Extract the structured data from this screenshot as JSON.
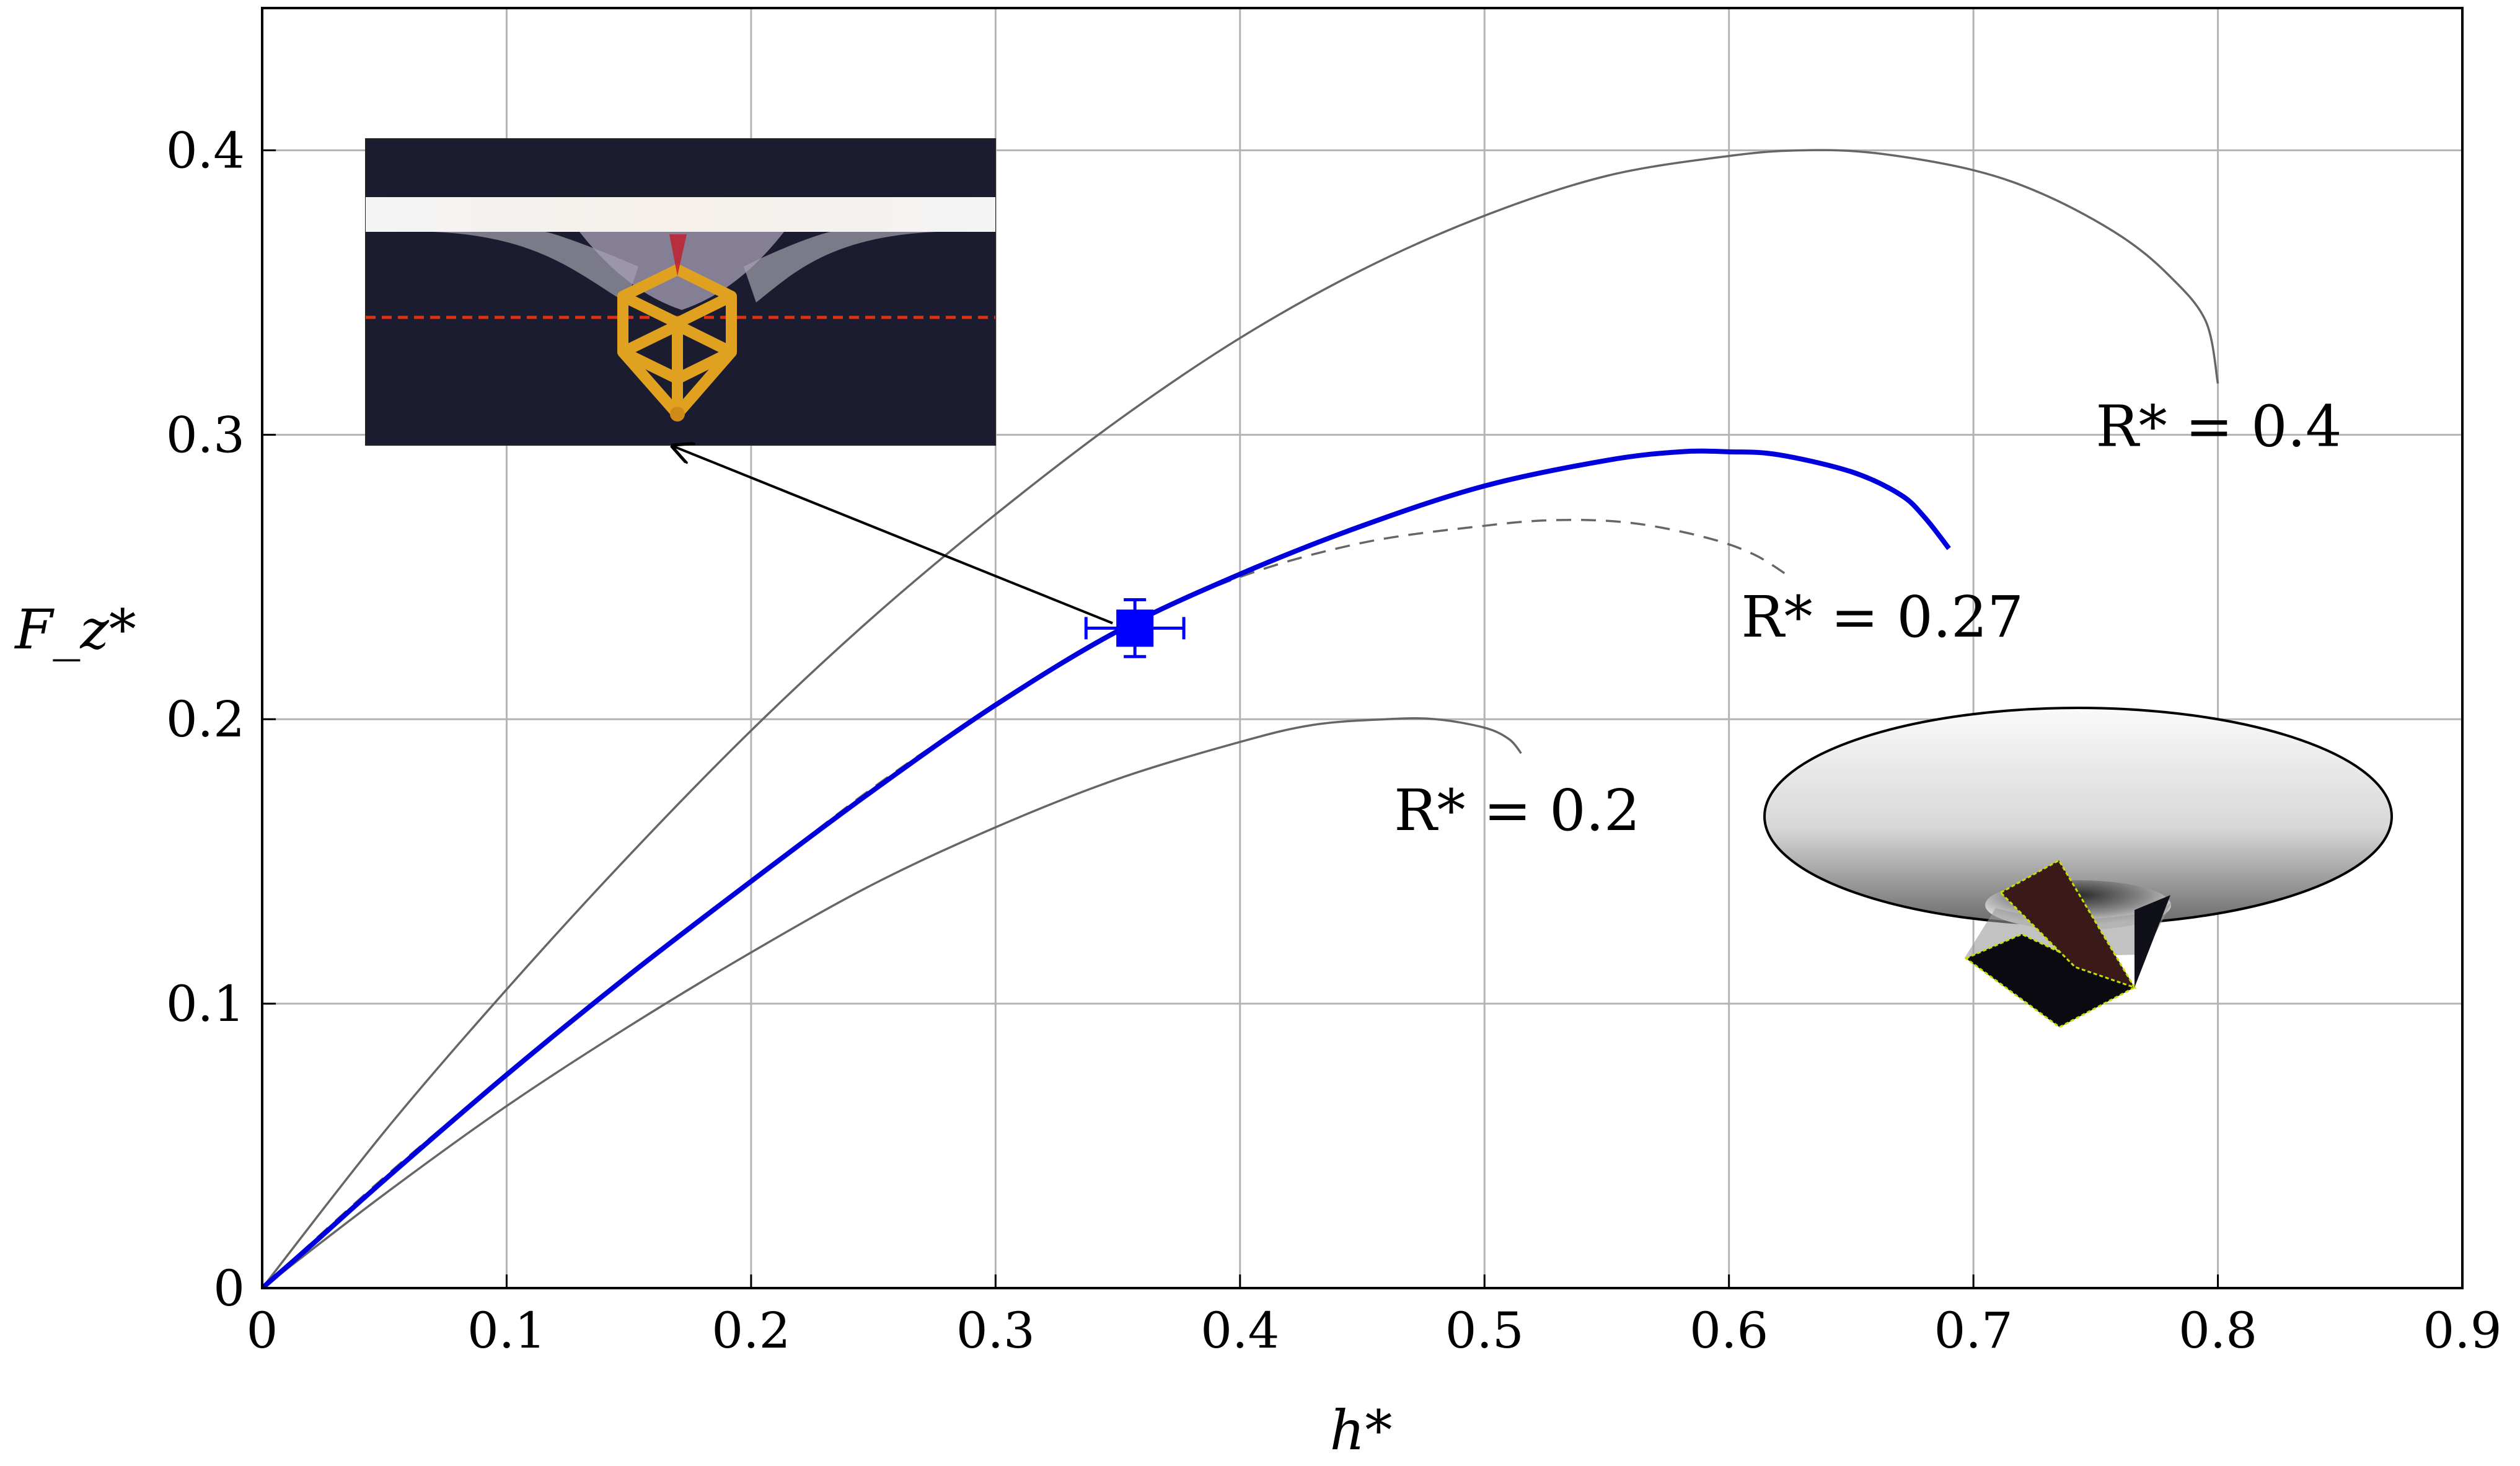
{
  "chart_data": {
    "type": "line",
    "xlabel": "h*",
    "ylabel": "F_z*",
    "xlim": [
      0,
      0.9
    ],
    "ylim": [
      0,
      0.45
    ],
    "grid": true,
    "x_ticks": [
      "0",
      "0.1",
      "0.2",
      "0.3",
      "0.4",
      "0.5",
      "0.6",
      "0.7",
      "0.8",
      "0.9"
    ],
    "y_ticks": [
      "0",
      "0.1",
      "0.2",
      "0.3",
      "0.4"
    ],
    "series": [
      {
        "name": "R* = 0.4",
        "color": "#666666",
        "style": "solid",
        "x": [
          0,
          0.05,
          0.1,
          0.15,
          0.2,
          0.25,
          0.3,
          0.35,
          0.4,
          0.45,
          0.5,
          0.55,
          0.6,
          0.63,
          0.66,
          0.7,
          0.73,
          0.76,
          0.78,
          0.795,
          0.8
        ],
        "y": [
          0,
          0.055,
          0.105,
          0.152,
          0.196,
          0.236,
          0.272,
          0.305,
          0.334,
          0.358,
          0.377,
          0.391,
          0.398,
          0.4,
          0.399,
          0.393,
          0.384,
          0.37,
          0.356,
          0.34,
          0.318
        ]
      },
      {
        "name": "R* = 0.27",
        "color": "#666666",
        "style": "dashed",
        "x": [
          0,
          0.05,
          0.1,
          0.15,
          0.2,
          0.25,
          0.3,
          0.35,
          0.4,
          0.45,
          0.5,
          0.53,
          0.56,
          0.59,
          0.61,
          0.625
        ],
        "y": [
          0,
          0.039,
          0.075,
          0.11,
          0.143,
          0.176,
          0.205,
          0.231,
          0.25,
          0.262,
          0.268,
          0.27,
          0.269,
          0.264,
          0.258,
          0.25
        ]
      },
      {
        "name": "R* = 0.2",
        "color": "#666666",
        "style": "solid",
        "x": [
          0,
          0.05,
          0.1,
          0.15,
          0.2,
          0.25,
          0.3,
          0.35,
          0.4,
          0.43,
          0.46,
          0.48,
          0.5,
          0.51,
          0.515
        ],
        "y": [
          0,
          0.033,
          0.064,
          0.092,
          0.118,
          0.142,
          0.162,
          0.179,
          0.192,
          0.198,
          0.2,
          0.2,
          0.197,
          0.193,
          0.188
        ]
      },
      {
        "name": "",
        "color": "#0000dd",
        "style": "solid-thick",
        "x": [
          0,
          0.02,
          0.05,
          0.1,
          0.15,
          0.2,
          0.25,
          0.3,
          0.35,
          0.4,
          0.45,
          0.5,
          0.55,
          0.58,
          0.6,
          0.62,
          0.65,
          0.67,
          0.68,
          0.69
        ],
        "y": [
          0,
          0.015,
          0.038,
          0.075,
          0.11,
          0.143,
          0.175,
          0.205,
          0.231,
          0.251,
          0.268,
          0.282,
          0.291,
          0.294,
          0.294,
          0.293,
          0.287,
          0.279,
          0.271,
          0.26
        ]
      }
    ],
    "marker": {
      "x": 0.357,
      "y": 0.232,
      "x_err": 0.02,
      "y_err": 0.01,
      "color": "#0000ff"
    },
    "annotations": [
      {
        "text": "R* = 0.4",
        "x": 0.75,
        "y": 0.296
      },
      {
        "text": "R* = 0.27",
        "x": 0.605,
        "y": 0.229
      },
      {
        "text": "R* = 0.2",
        "x": 0.463,
        "y": 0.161
      }
    ],
    "inset_photo_source_point": {
      "x": 0.357,
      "y": 0.232
    },
    "inset_photo_target_point": {
      "x": 0.168,
      "y": 0.296
    },
    "colors": {
      "photo_background": "#1a1a2e",
      "cube_frame": "#e0a020",
      "measurement_line": "#e03010"
    }
  }
}
